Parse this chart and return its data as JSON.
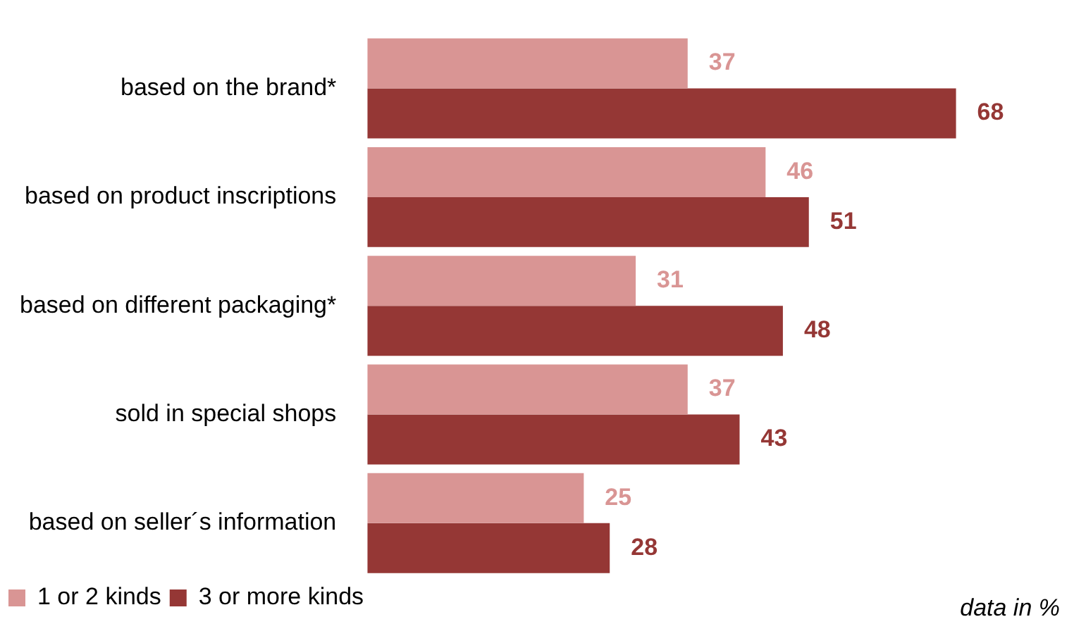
{
  "chart_data": {
    "type": "bar",
    "orientation": "horizontal",
    "categories": [
      "based on the brand*",
      "based on product inscriptions",
      "based on different packaging*",
      "sold in special shops",
      "based on seller´s information"
    ],
    "series": [
      {
        "name": "1 or 2 kinds",
        "color": "#d99594",
        "values": [
          37,
          46,
          31,
          37,
          25
        ]
      },
      {
        "name": "3 or more kinds",
        "color": "#953735",
        "values": [
          68,
          51,
          48,
          43,
          28
        ]
      }
    ],
    "data_labels": true,
    "legend": "bottom left",
    "annotations": [
      "data in %"
    ]
  }
}
